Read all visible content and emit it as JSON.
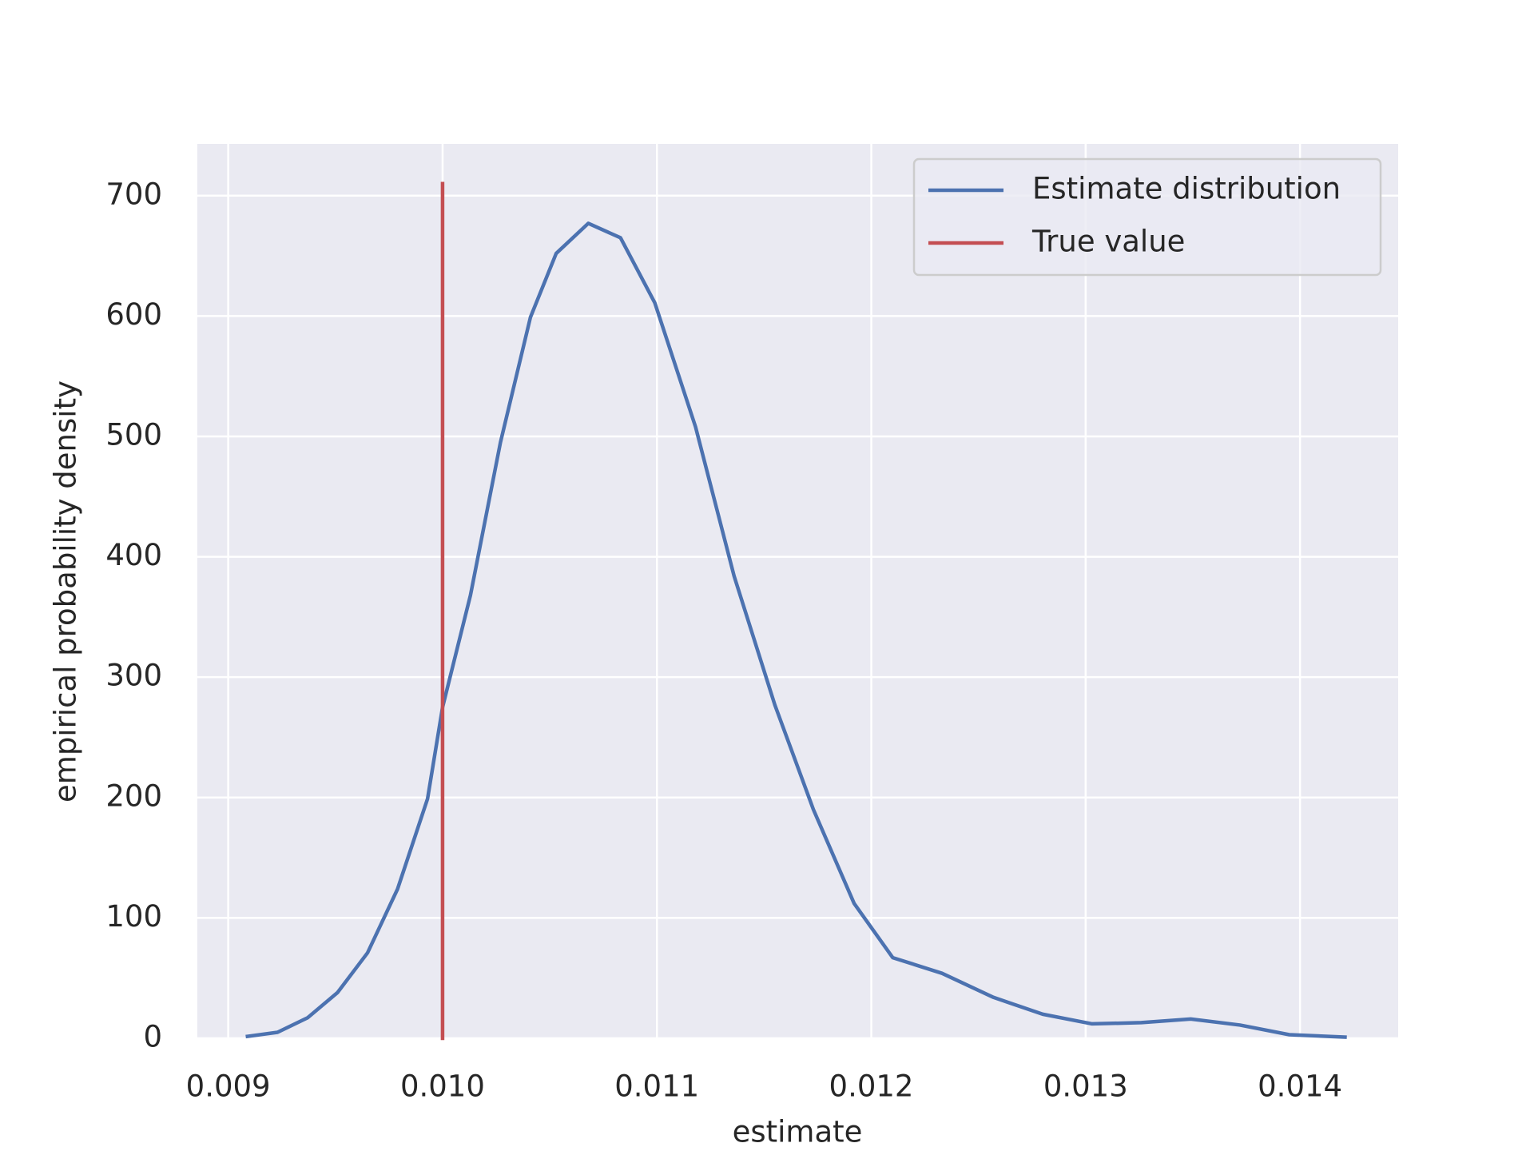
{
  "chart_data": {
    "type": "line",
    "x_label": "estimate",
    "y_label": "empirical probability density",
    "xlim": [
      0.008856,
      0.014458
    ],
    "ylim": [
      0,
      743
    ],
    "xticks": [
      0.009,
      {
        "value": 0.01,
        "label": "0.010"
      },
      0.011,
      0.012,
      0.013,
      0.014
    ],
    "yticks": [
      0,
      100,
      200,
      300,
      400,
      500,
      600,
      700
    ],
    "grid": true,
    "background": "#eaeaf2",
    "legend": "upper right",
    "series": [
      {
        "name": "Estimate distribution",
        "color": "#4c72b0",
        "x": [
          0.00909,
          0.00923,
          0.00937,
          0.00951,
          0.00965,
          0.00979,
          0.00993,
          0.01,
          0.01013,
          0.01027,
          0.01041,
          0.01053,
          0.01068,
          0.01083,
          0.01099,
          0.01118,
          0.01136,
          0.01155,
          0.01173,
          0.01192,
          0.0121,
          0.01233,
          0.01257,
          0.0128,
          0.01303,
          0.01326,
          0.01349,
          0.01372,
          0.01395,
          0.01421
        ],
        "values": [
          1.6,
          5,
          17,
          38,
          71,
          124,
          199,
          275,
          368,
          495,
          599,
          652,
          677,
          665,
          611,
          508,
          384,
          277,
          190,
          112,
          67,
          54,
          34,
          20,
          12,
          13,
          16,
          11,
          3,
          1
        ]
      },
      {
        "name": "True value",
        "color": "#c44e52",
        "x": [
          0.01,
          0.01
        ],
        "values": [
          0,
          710
        ]
      }
    ]
  }
}
